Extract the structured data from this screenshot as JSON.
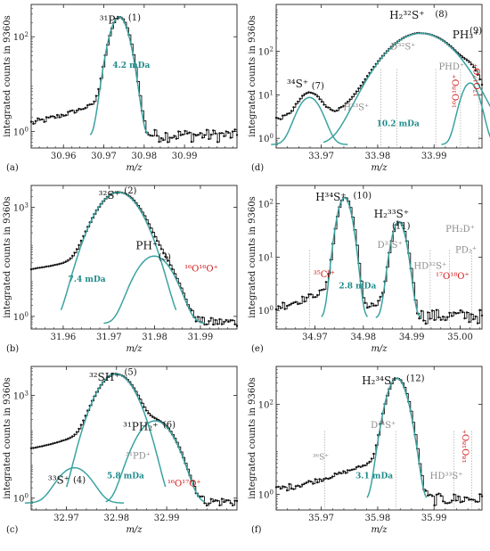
{
  "figure": {
    "y_axis_label": "integrated counts in 9360s",
    "x_axis_label": "m/z",
    "colors": {
      "data": "#111111",
      "fit": "#3aa3a0",
      "teal": "#1f8a8a",
      "grey": "#8c8c8c",
      "red": "#d21a1a"
    }
  },
  "chart_data": [
    {
      "type": "line",
      "panel": "(a)",
      "xlim": [
        30.952,
        31.003
      ],
      "log_y": true,
      "ylim": [
        0.45,
        480
      ],
      "x_ticks": [
        30.96,
        30.97,
        30.98,
        30.99
      ],
      "x_tick_labels": [
        "30.96",
        "30.97",
        "30.98",
        "30.99"
      ],
      "y_ticks": [
        1,
        100
      ],
      "y_tick_labels": [
        "10⁰",
        "10²"
      ],
      "y_tick_exponents": [
        "0",
        "2"
      ],
      "noise_level": 0.85,
      "peaks": [
        {
          "x": 30.9738,
          "height": 260,
          "width_mDa": 4.2
        }
      ],
      "labels": [
        {
          "text": "³¹P⁺",
          "x": 30.9716,
          "y": 190,
          "color": "black",
          "size": 12
        },
        {
          "text": "(1)",
          "x": 30.9776,
          "y": 220,
          "color": "black",
          "size": 10
        }
      ],
      "width_annotations": [
        {
          "text": "4.2 mDa",
          "x": 30.9768,
          "y": 22,
          "color": "teal"
        }
      ],
      "marker_lines": []
    },
    {
      "type": "line",
      "panel": "(b)",
      "xlim": [
        31.953,
        31.998
      ],
      "log_y": true,
      "ylim": [
        0.45,
        4000
      ],
      "x_ticks": [
        31.96,
        31.97,
        31.98,
        31.99
      ],
      "x_tick_labels": [
        "31.96",
        "31.97",
        "31.98",
        "31.99"
      ],
      "y_ticks": [
        1,
        1000
      ],
      "y_tick_labels": [
        "10⁰",
        "10³"
      ],
      "y_tick_exponents": [
        "0",
        "3"
      ],
      "noise_level": 0.7,
      "peaks": [
        {
          "x": 31.9721,
          "height": 2600,
          "width_mDa": 7.4
        },
        {
          "x": 31.9799,
          "height": 45,
          "width_mDa": 6.5
        }
      ],
      "labels": [
        {
          "text": "³²S⁺",
          "x": 31.9701,
          "y": 1700,
          "color": "black",
          "size": 12
        },
        {
          "text": "(2)",
          "x": 31.9747,
          "y": 2400,
          "color": "black",
          "size": 10
        },
        {
          "text": "PH⁺",
          "x": 31.9783,
          "y": 70,
          "color": "black",
          "size": 12
        },
        {
          "text": "(3)",
          "x": 31.9822,
          "y": 36,
          "color": "black",
          "size": 10
        },
        {
          "text": "¹⁶O¹⁶O⁺",
          "x": 31.9902,
          "y": 17,
          "color": "red",
          "size": 10
        }
      ],
      "width_annotations": [
        {
          "text": "7.4 mDa",
          "x": 31.9652,
          "y": 9,
          "color": "teal"
        }
      ],
      "marker_lines": []
    },
    {
      "type": "line",
      "panel": "(c)",
      "xlim": [
        32.963,
        33.004
      ],
      "log_y": true,
      "ylim": [
        0.45,
        7000
      ],
      "x_ticks": [
        32.97,
        32.98,
        32.99
      ],
      "x_tick_labels": [
        "32.97",
        "32.98",
        "32.99"
      ],
      "y_ticks": [
        1,
        1000
      ],
      "y_tick_labels": [
        "10⁰",
        "10³"
      ],
      "y_tick_exponents": [
        "0",
        "3"
      ],
      "noise_level": 0.8,
      "peaks": [
        {
          "x": 32.9716,
          "height": 7,
          "width_mDa": 5.8
        },
        {
          "x": 32.9799,
          "height": 4200,
          "width_mDa": 5.8
        },
        {
          "x": 32.9877,
          "height": 180,
          "width_mDa": 5.8
        }
      ],
      "labels": [
        {
          "text": "³²SH⁺",
          "x": 32.9776,
          "y": 2700,
          "color": "black",
          "size": 12
        },
        {
          "text": "(5)",
          "x": 32.9828,
          "y": 4000,
          "color": "black",
          "size": 10
        },
        {
          "text": "³¹PH₂⁺",
          "x": 32.9848,
          "y": 95,
          "color": "black",
          "size": 12
        },
        {
          "text": "(6)",
          "x": 32.9905,
          "y": 115,
          "color": "black",
          "size": 10
        },
        {
          "text": "³¹PD⁺",
          "x": 32.9843,
          "y": 14,
          "color": "grey",
          "size": 10
        },
        {
          "text": "³³S⁺",
          "x": 32.9685,
          "y": 2.6,
          "color": "black",
          "size": 12
        },
        {
          "text": "(4)",
          "x": 32.9726,
          "y": 2.8,
          "color": "black",
          "size": 10
        },
        {
          "text": "¹⁶O¹⁷O⁺",
          "x": 32.9935,
          "y": 2.2,
          "color": "red",
          "size": 10
        }
      ],
      "width_annotations": [
        {
          "text": "5.8 mDa",
          "x": 32.9818,
          "y": 3.8,
          "color": "teal"
        }
      ],
      "marker_lines": []
    },
    {
      "type": "line",
      "panel": "(d)",
      "xlim": [
        33.962,
        33.9985
      ],
      "log_y": true,
      "ylim": [
        0.6,
        1200
      ],
      "x_ticks": [
        33.97,
        33.98,
        33.99
      ],
      "x_tick_labels": [
        "33.97",
        "33.98",
        "33.99"
      ],
      "y_ticks": [
        1,
        10,
        100
      ],
      "y_tick_labels": [
        "10⁰",
        "10¹",
        "10²"
      ],
      "y_tick_exponents": [
        "0",
        "1",
        "2"
      ],
      "noise_level": 0.8,
      "peaks": [
        {
          "x": 33.9679,
          "height": 8,
          "width_mDa": 4.0
        },
        {
          "x": 33.9877,
          "height": 260,
          "width_mDa": 10.2
        },
        {
          "x": 33.9964,
          "height": 18,
          "width_mDa": 3.0
        }
      ],
      "labels": [
        {
          "text": "H₂³²S⁺",
          "x": 33.9852,
          "y": 560,
          "color": "black",
          "size": 12
        },
        {
          "text": "(8)",
          "x": 33.9913,
          "y": 620,
          "color": "black",
          "size": 10
        },
        {
          "text": "PH₃⁺",
          "x": 33.9956,
          "y": 200,
          "color": "black",
          "size": 12
        },
        {
          "text": "(9)",
          "x": 33.9974,
          "y": 260,
          "color": "black",
          "size": 10
        },
        {
          "text": "D³²S⁺",
          "x": 33.9845,
          "y": 110,
          "color": "grey",
          "size": 10
        },
        {
          "text": "PHD⁺",
          "x": 33.9931,
          "y": 38,
          "color": "grey",
          "size": 10
        },
        {
          "text": "³⁴S⁺",
          "x": 33.9658,
          "y": 15,
          "color": "black",
          "size": 12
        },
        {
          "text": "(7)",
          "x": 33.9694,
          "y": 14,
          "color": "black",
          "size": 10
        },
        {
          "text": "H³³S⁺",
          "x": 33.9762,
          "y": 4.5,
          "color": "grey",
          "size": 10
        }
      ],
      "rotated_labels": [
        {
          "text": "¹⁶O¹⁸O⁺",
          "x": 33.9944,
          "y": 5,
          "color": "red"
        },
        {
          "text": "¹⁷O¹⁷O⁺",
          "x": 33.9982,
          "y": 9,
          "color": "red"
        }
      ],
      "width_annotations": [
        {
          "text": "10.2 mDa",
          "x": 33.9836,
          "y": 1.9,
          "color": "teal"
        }
      ],
      "marker_lines": [
        33.9806,
        33.9834,
        33.9903,
        33.9947,
        33.9979
      ]
    },
    {
      "type": "line",
      "panel": "(e)",
      "xlim": [
        34.962,
        35.0045
      ],
      "log_y": true,
      "ylim": [
        0.45,
        220
      ],
      "x_ticks": [
        34.97,
        34.98,
        34.99,
        35.0
      ],
      "x_tick_labels": [
        "34.97",
        "34.98",
        "34.99",
        "35.00"
      ],
      "y_ticks": [
        1,
        10,
        100
      ],
      "y_tick_labels": [
        "10⁰",
        "10¹",
        "10²"
      ],
      "y_tick_exponents": [
        "0",
        "1",
        "2"
      ],
      "noise_level": 0.8,
      "peaks": [
        {
          "x": 34.9761,
          "height": 130,
          "width_mDa": 2.8
        },
        {
          "x": 34.9873,
          "height": 45,
          "width_mDa": 2.8
        }
      ],
      "labels": [
        {
          "text": "H³⁴S⁺",
          "x": 34.9733,
          "y": 115,
          "color": "black",
          "size": 12
        },
        {
          "text": "(10)",
          "x": 34.9798,
          "y": 125,
          "color": "black",
          "size": 10
        },
        {
          "text": "H₂³³S⁺",
          "x": 34.9858,
          "y": 55,
          "color": "black",
          "size": 12
        },
        {
          "text": "(11)",
          "x": 34.9878,
          "y": 34,
          "color": "black",
          "size": 10
        },
        {
          "text": "D³³S⁺",
          "x": 34.9855,
          "y": 15,
          "color": "grey",
          "size": 10
        },
        {
          "text": "HD³²S⁺",
          "x": 34.9938,
          "y": 6,
          "color": "grey",
          "size": 10
        },
        {
          "text": "PH₂D⁺",
          "x": 35.0,
          "y": 30,
          "color": "grey",
          "size": 10
        },
        {
          "text": "PD₂⁺",
          "x": 35.0012,
          "y": 12,
          "color": "grey",
          "size": 10
        },
        {
          "text": "³⁵Cl⁺",
          "x": 34.9719,
          "y": 4.2,
          "color": "red",
          "size": 10
        },
        {
          "text": "¹⁷O¹⁸O⁺",
          "x": 34.9984,
          "y": 3.9,
          "color": "red",
          "size": 10
        }
      ],
      "width_annotations": [
        {
          "text": "2.8 mDa",
          "x": 34.9788,
          "y": 2.6,
          "color": "teal"
        }
      ],
      "marker_lines": [
        34.9689,
        34.9938,
        34.9978,
        35.0024
      ]
    },
    {
      "type": "line",
      "panel": "(f)",
      "xlim": [
        35.962,
        35.9985
      ],
      "log_y": true,
      "ylim": [
        0.45,
        700
      ],
      "x_ticks": [
        35.97,
        35.98,
        35.99
      ],
      "x_tick_labels": [
        "35.97",
        "35.98",
        "35.99"
      ],
      "y_ticks": [
        1,
        100
      ],
      "y_tick_labels": [
        "10⁰",
        "10²"
      ],
      "y_tick_exponents": [
        "0",
        "2"
      ],
      "noise_level": 0.8,
      "peaks": [
        {
          "x": 35.9834,
          "height": 380,
          "width_mDa": 3.1
        }
      ],
      "labels": [
        {
          "text": "H₂³⁴S⁺",
          "x": 35.9803,
          "y": 280,
          "color": "black",
          "size": 12
        },
        {
          "text": "(12)",
          "x": 35.9867,
          "y": 330,
          "color": "black",
          "size": 10
        },
        {
          "text": "D³⁴S⁺",
          "x": 35.981,
          "y": 30,
          "color": "grey",
          "size": 10
        },
        {
          "text": "³⁶S⁺",
          "x": 35.9699,
          "y": 6,
          "color": "grey",
          "size": 9
        },
        {
          "text": "HD³³S⁺",
          "x": 35.9922,
          "y": 2.2,
          "color": "grey",
          "size": 10
        }
      ],
      "rotated_labels": [
        {
          "text": "¹⁸O¹⁸O⁺",
          "x": 35.9962,
          "y": 5,
          "color": "red"
        }
      ],
      "width_annotations": [
        {
          "text": "3.1 mDa",
          "x": 35.9794,
          "y": 2.3,
          "color": "teal"
        }
      ],
      "marker_lines": [
        35.9706,
        35.9832,
        35.9935,
        35.9967
      ]
    }
  ]
}
